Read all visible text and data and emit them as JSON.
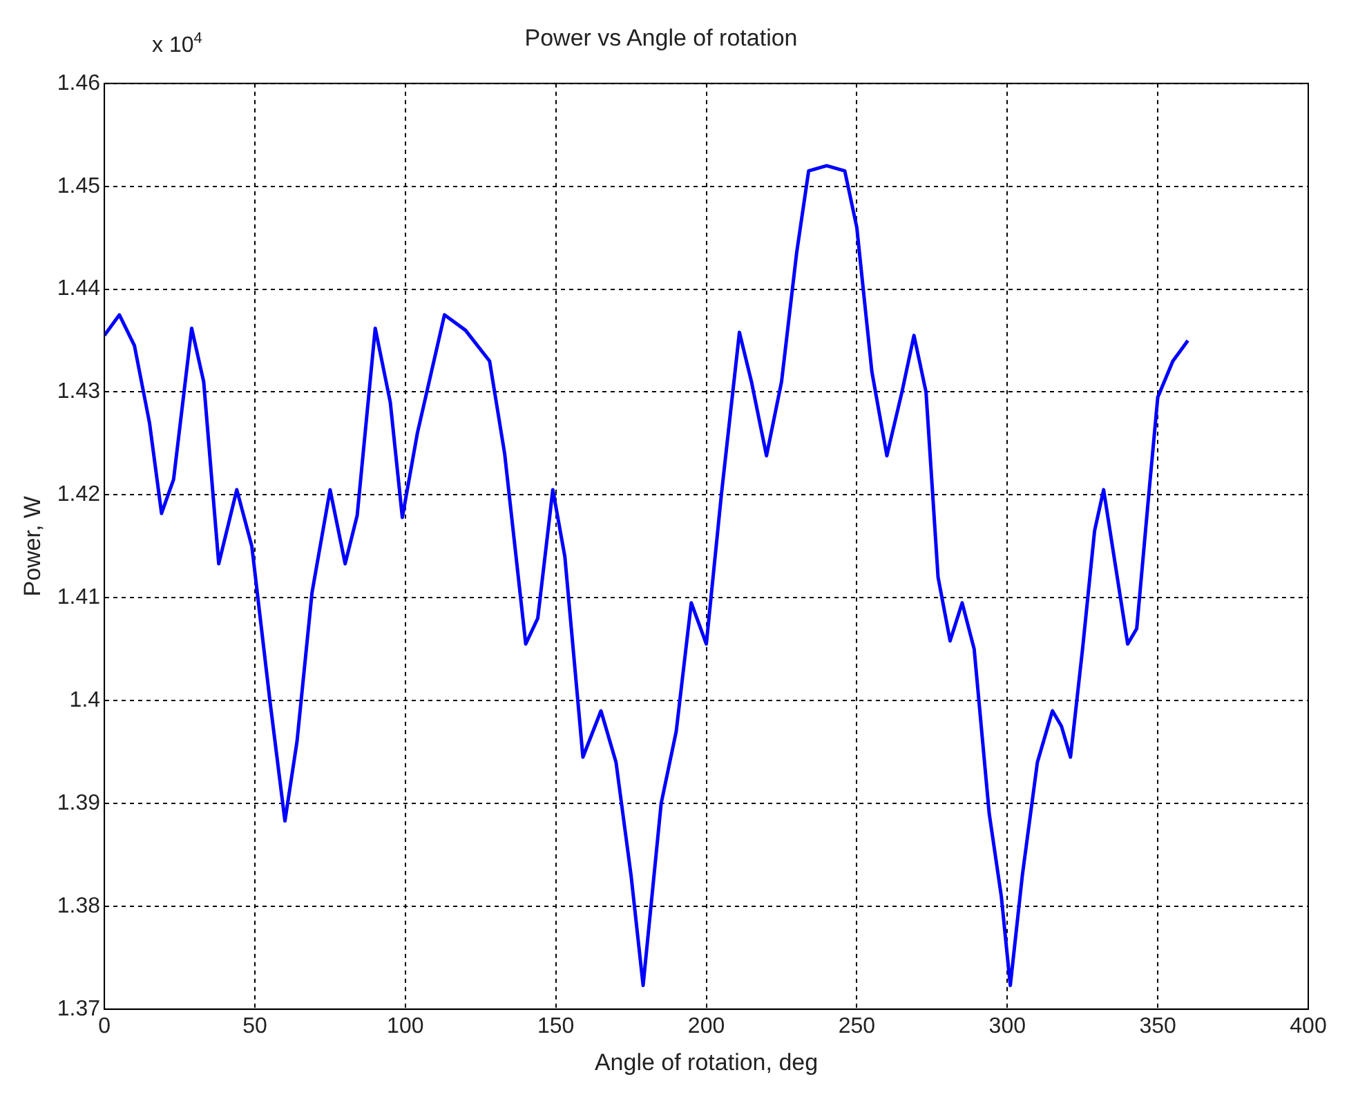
{
  "chart_data": {
    "type": "line",
    "title": "Power vs Angle of rotation",
    "xlabel": "Angle of rotation, deg",
    "ylabel": "Power, W",
    "annotations": [
      "x 10$^{4}$"
    ],
    "series": [
      {
        "color": "#0000ff",
        "x": [
          0,
          5,
          10,
          15,
          19,
          23,
          29,
          33,
          38,
          44,
          49,
          55,
          60,
          64,
          69,
          75,
          80,
          84,
          90,
          95,
          99,
          104,
          113,
          120,
          128,
          133,
          140,
          144,
          149,
          153,
          159,
          165,
          170,
          175,
          179,
          185,
          190,
          195,
          200,
          205,
          211,
          215,
          220,
          225,
          230,
          234,
          240,
          246,
          250,
          255,
          260,
          265,
          269,
          273,
          277,
          281,
          285,
          289,
          294,
          298,
          301,
          305,
          310,
          315,
          318,
          321,
          325,
          329,
          332,
          336,
          340,
          343,
          347,
          350,
          355,
          360
        ],
        "values": [
          1.4355,
          1.4375,
          1.4345,
          1.427,
          1.4182,
          1.4215,
          1.4362,
          1.431,
          1.4133,
          1.4205,
          1.415,
          1.4,
          1.3883,
          1.396,
          1.4105,
          1.4205,
          1.4133,
          1.418,
          1.4362,
          1.429,
          1.4178,
          1.426,
          1.4375,
          1.436,
          1.433,
          1.424,
          1.4055,
          1.408,
          1.4205,
          1.414,
          1.3945,
          1.399,
          1.394,
          1.383,
          1.3723,
          1.39,
          1.397,
          1.4095,
          1.4055,
          1.42,
          1.4358,
          1.431,
          1.4238,
          1.431,
          1.4435,
          1.4515,
          1.452,
          1.4515,
          1.446,
          1.432,
          1.4238,
          1.43,
          1.4355,
          1.43,
          1.412,
          1.4058,
          1.4095,
          1.405,
          1.389,
          1.381,
          1.3723,
          1.383,
          1.394,
          1.399,
          1.3975,
          1.3945,
          1.405,
          1.4165,
          1.4205,
          1.413,
          1.4055,
          1.407,
          1.42,
          1.4295,
          1.433,
          1.435
        ]
      }
    ],
    "xlim": [
      0,
      400
    ],
    "xticks": [
      0,
      50,
      100,
      150,
      200,
      250,
      300,
      350,
      400
    ],
    "ylim": [
      1.37,
      1.46
    ],
    "yticks": [
      1.37,
      1.38,
      1.39,
      1.4,
      1.41,
      1.42,
      1.43,
      1.44,
      1.45,
      1.46
    ],
    "grid": true,
    "legend": false,
    "marker": "none",
    "line_style": "solid"
  }
}
